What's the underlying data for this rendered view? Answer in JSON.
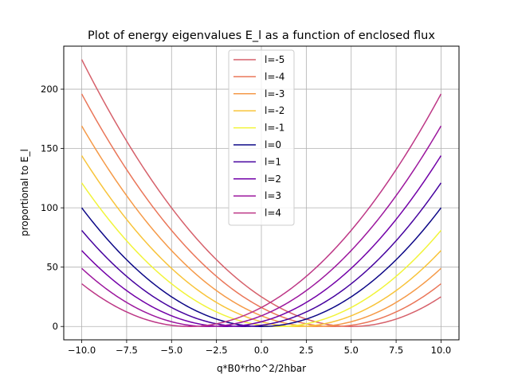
{
  "chart_data": {
    "type": "line",
    "title": "Plot of energy eigenvalues E_l as a function of enclosed flux",
    "xlabel": "q*B0*rho^2/2hbar",
    "ylabel": "proportional to E_l",
    "xlim": [
      -11,
      11
    ],
    "ylim": [
      -11.25,
      236.25
    ],
    "xticks": [
      -10.0,
      -7.5,
      -5.0,
      -2.5,
      0.0,
      2.5,
      5.0,
      7.5,
      10.0
    ],
    "xtick_labels": [
      "−10.0",
      "−7.5",
      "−5.0",
      "−2.5",
      "0.0",
      "2.5",
      "5.0",
      "7.5",
      "10.0"
    ],
    "yticks": [
      0,
      50,
      100,
      150,
      200
    ],
    "ytick_labels": [
      "0",
      "50",
      "100",
      "150",
      "200"
    ],
    "grid": true,
    "legend_position": "top-center",
    "x_range": [
      -10,
      10
    ],
    "formula": "E_l ∝ (l + x)^2",
    "series": [
      {
        "name": "l=-5",
        "l": -5,
        "color": "#d6616b"
      },
      {
        "name": "l=-4",
        "l": -4,
        "color": "#ea7659"
      },
      {
        "name": "l=-3",
        "l": -3,
        "color": "#f59a48"
      },
      {
        "name": "l=-2",
        "l": -2,
        "color": "#f8c43a"
      },
      {
        "name": "l=-1",
        "l": -1,
        "color": "#f1f43a"
      },
      {
        "name": "l=0",
        "l": 0,
        "color": "#0d0887"
      },
      {
        "name": "l=1",
        "l": 1,
        "color": "#46039f"
      },
      {
        "name": "l=2",
        "l": 2,
        "color": "#7201a8"
      },
      {
        "name": "l=3",
        "l": 3,
        "color": "#9c179e"
      },
      {
        "name": "l=4",
        "l": 4,
        "color": "#bd3786"
      }
    ]
  }
}
